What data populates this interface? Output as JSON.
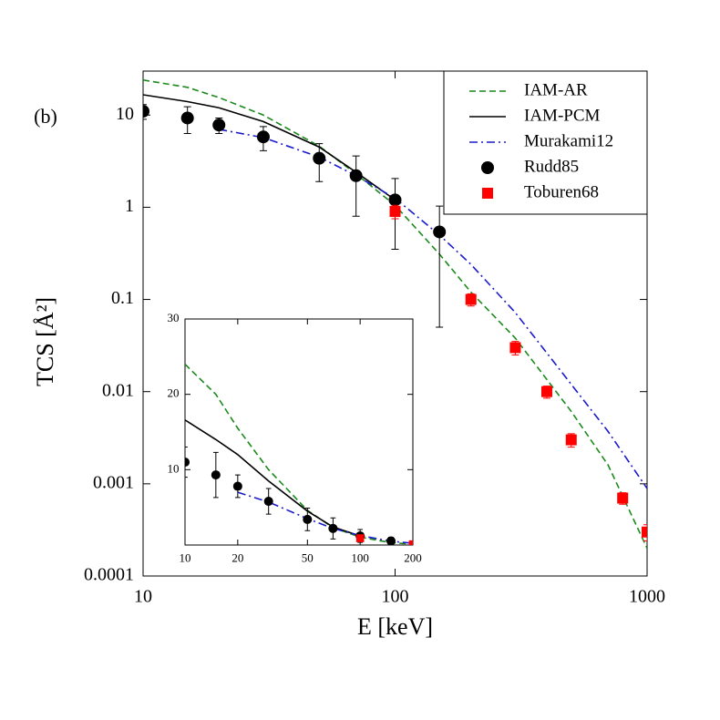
{
  "chart_data": [
    {
      "type": "line",
      "xlabel": "E [keV]",
      "ylabel": "TCS [Å²]",
      "annotation": "(b)",
      "xscale": "log",
      "yscale": "log",
      "xlim": [
        10,
        1000
      ],
      "ylim": [
        0.0001,
        30
      ],
      "xticks": [
        10,
        100,
        1000
      ],
      "yticks": [
        0.0001,
        0.001,
        0.01,
        0.1,
        1,
        10
      ],
      "legend": "upper right",
      "series": [
        {
          "name": "IAM-AR",
          "color": "#1a8a1a",
          "dash": "dashed",
          "x": [
            10,
            15,
            20,
            30,
            50,
            70,
            100,
            150,
            200,
            300,
            500,
            700,
            1000
          ],
          "values": [
            24,
            20,
            15.5,
            10,
            4.6,
            2.3,
            1.05,
            0.31,
            0.12,
            0.038,
            0.0061,
            0.0016,
            0.0002
          ]
        },
        {
          "name": "IAM-PCM",
          "color": "#000000",
          "dash": "solid",
          "x": [
            10,
            15,
            20,
            30,
            50,
            70,
            100
          ],
          "values": [
            16.6,
            14,
            12,
            8.5,
            4.5,
            2.4,
            1.2
          ]
        },
        {
          "name": "Murakami12",
          "color": "#1a1acc",
          "dash": "dashdot",
          "x": [
            20,
            30,
            50,
            70,
            100,
            150,
            200,
            300,
            500,
            700,
            1000
          ],
          "values": [
            7,
            5.7,
            3.5,
            2.2,
            1.25,
            0.5,
            0.24,
            0.072,
            0.012,
            0.0037,
            0.00089
          ]
        },
        {
          "name": "Rudd85",
          "color": "#000000",
          "marker": "circle",
          "x": [
            10,
            15,
            20,
            30,
            50,
            70,
            100,
            150
          ],
          "values": [
            11,
            9.3,
            7.8,
            5.8,
            3.4,
            2.2,
            1.2,
            0.54
          ],
          "errors": [
            2,
            3,
            1.5,
            1.7,
            1.5,
            1.4,
            0.85,
            0.49
          ]
        },
        {
          "name": "Toburen68",
          "color": "#ff0000",
          "marker": "square",
          "x": [
            100,
            200,
            300,
            400,
            500,
            800,
            1000
          ],
          "values": [
            0.9,
            0.1,
            0.03,
            0.01,
            0.003,
            0.0007,
            0.0003
          ],
          "errors": [
            0.15,
            0.015,
            0.005,
            0.0015,
            0.0005,
            0.0001,
            6e-05
          ]
        }
      ]
    },
    {
      "type": "line",
      "xscale": "log",
      "yscale": "linear",
      "xlim": [
        10,
        200
      ],
      "ylim": [
        0,
        30
      ],
      "xticks": [
        10,
        20,
        50,
        100,
        200
      ],
      "yticks": [
        10,
        20,
        30
      ],
      "series": [
        {
          "color": "#1a8a1a",
          "dash": "dashed",
          "x": [
            10,
            15,
            20,
            30,
            50,
            70,
            100,
            150,
            200
          ],
          "values": [
            24,
            20,
            15.5,
            10,
            4.6,
            2.3,
            1.05,
            0.31,
            0.12
          ]
        },
        {
          "color": "#000000",
          "dash": "solid",
          "x": [
            10,
            15,
            20,
            30,
            50,
            70,
            100
          ],
          "values": [
            16.6,
            14,
            12,
            8.5,
            4.5,
            2.4,
            1.2
          ]
        },
        {
          "color": "#1a1acc",
          "dash": "dashdot",
          "x": [
            20,
            30,
            50,
            70,
            100,
            150,
            200
          ],
          "values": [
            7,
            5.7,
            3.5,
            2.2,
            1.25,
            0.5,
            0.24
          ]
        },
        {
          "color": "#000000",
          "marker": "circle",
          "x": [
            10,
            15,
            20,
            30,
            50,
            70,
            100,
            150
          ],
          "values": [
            11,
            9.3,
            7.8,
            5.8,
            3.4,
            2.2,
            1.2,
            0.54
          ],
          "errors": [
            2,
            3,
            1.5,
            1.7,
            1.5,
            1.4,
            0.85,
            0.49
          ]
        },
        {
          "color": "#ff0000",
          "marker": "square",
          "x": [
            100,
            200
          ],
          "values": [
            0.9,
            0.1
          ],
          "errors": [
            0.15,
            0.015
          ]
        }
      ]
    }
  ]
}
